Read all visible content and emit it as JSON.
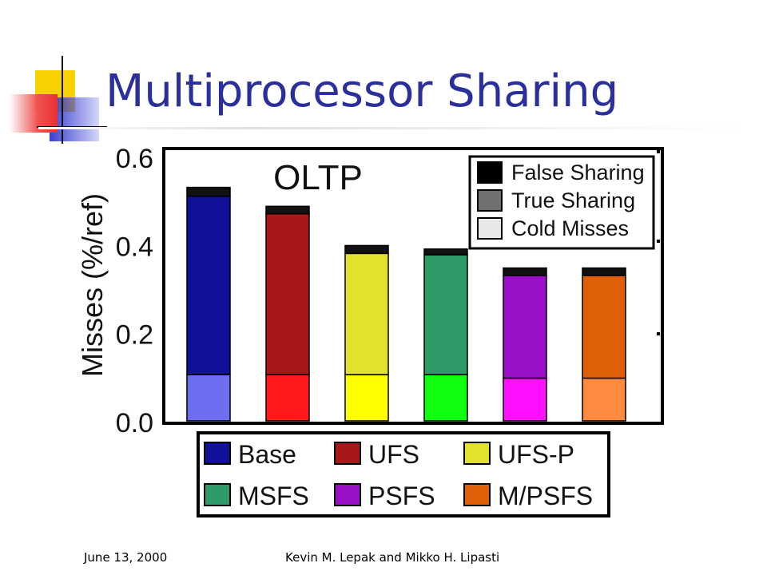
{
  "slide": {
    "title": "Multiprocessor Sharing",
    "footer_date": "June 13, 2000",
    "footer_authors": "Kevin M. Lepak and Mikko H. Lipasti"
  },
  "chart_data": {
    "type": "bar",
    "stacked": true,
    "title": "OLTP",
    "xlabel": "",
    "ylabel": "Misses (%/ref)",
    "ylim": [
      0.0,
      0.6
    ],
    "yticks": [
      "0.0",
      "0.2",
      "0.4",
      "0.6"
    ],
    "categories": [
      "Base",
      "UFS",
      "UFS-P",
      "MSFS",
      "PSFS",
      "M/PSFS"
    ],
    "category_colors": [
      "#10109a",
      "#a81818",
      "#e2e22c",
      "#2f9a68",
      "#9a10c8",
      "#e0600a"
    ],
    "cold_colors": [
      "#6e6ef0",
      "#ff1a1a",
      "#ffff00",
      "#10ff10",
      "#ff10ff",
      "#ff8a40"
    ],
    "series": [
      {
        "name": "Cold Misses",
        "values": [
          0.105,
          0.105,
          0.105,
          0.105,
          0.097,
          0.097
        ]
      },
      {
        "name": "True Sharing",
        "values": [
          0.405,
          0.365,
          0.275,
          0.272,
          0.233,
          0.233
        ]
      },
      {
        "name": "False Sharing",
        "values": [
          0.02,
          0.017,
          0.018,
          0.013,
          0.017,
          0.017
        ]
      }
    ],
    "legend_top": [
      "False Sharing",
      "True Sharing",
      "Cold Misses"
    ],
    "legend_top_colors": [
      "#000000",
      "#707070",
      "#e8e8e8"
    ],
    "legend_top_position": "top-right",
    "legend_bottom_position": "bottom"
  }
}
